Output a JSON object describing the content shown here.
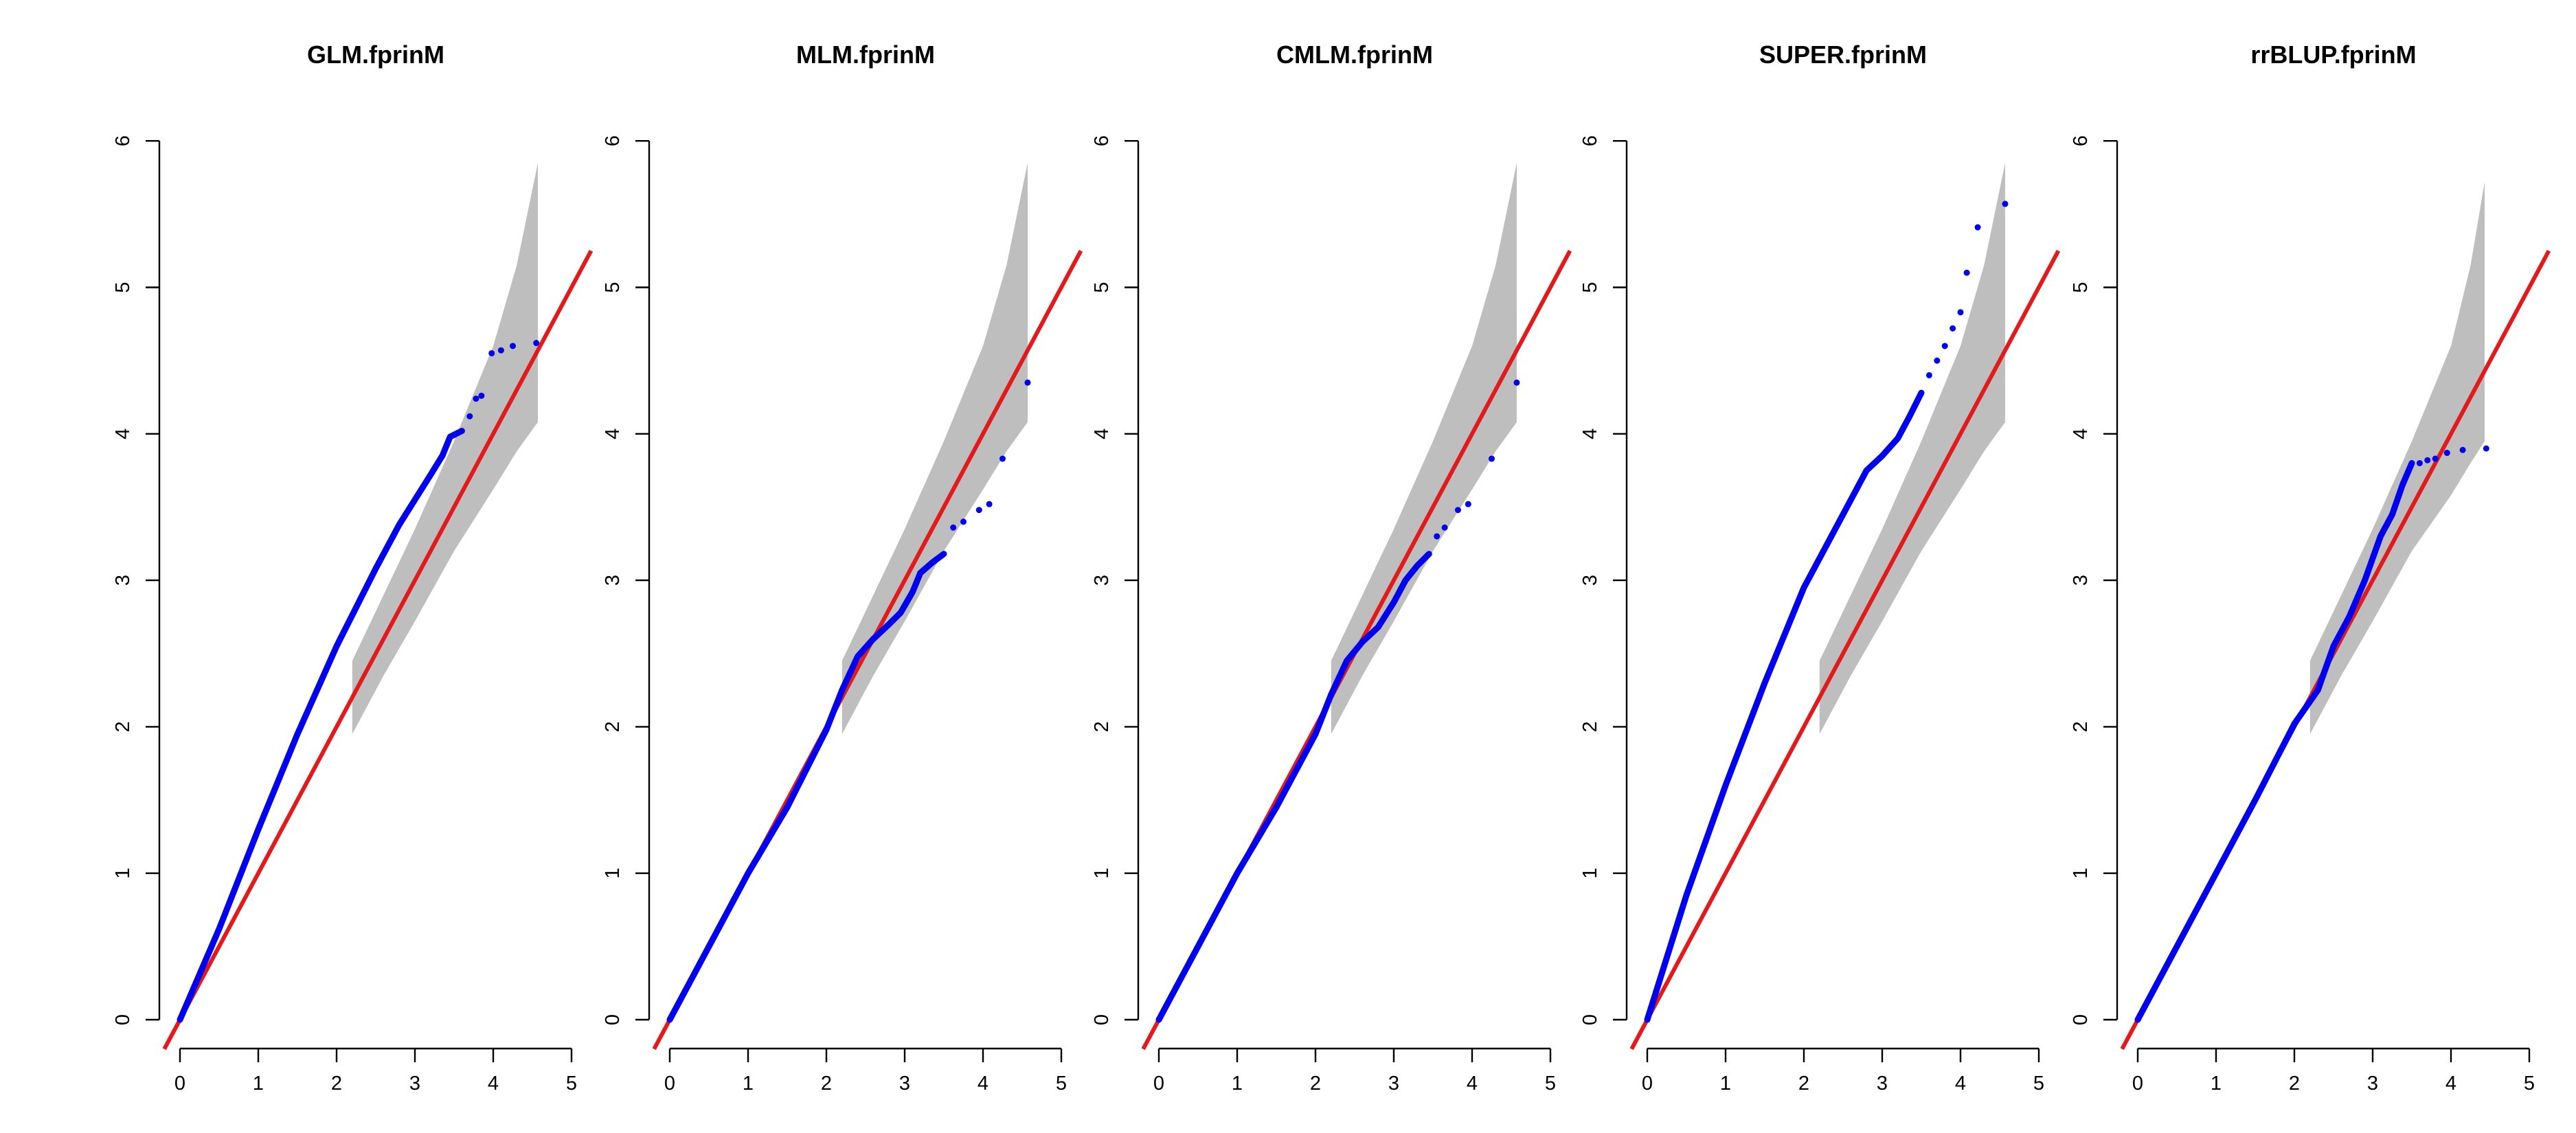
{
  "colors": {
    "points": "#0000ee",
    "diagonal": "#e31a1c",
    "confidence_band": "#bebebe",
    "axes": "#000000"
  },
  "chart_data": [
    {
      "type": "scatter",
      "title": "GLM.fprinM",
      "xlabel": "",
      "ylabel": "",
      "xlim": [
        0,
        5
      ],
      "ylim": [
        0,
        6
      ],
      "x_ticks": [
        0,
        1,
        2,
        3,
        4,
        5
      ],
      "y_ticks": [
        0,
        1,
        2,
        3,
        4,
        5,
        6
      ],
      "grid": false,
      "reference_line": {
        "slope": 1,
        "intercept": 0
      },
      "confidence_band": {
        "x": [
          2.2,
          2.6,
          3.0,
          3.5,
          4.0,
          4.3,
          4.57
        ],
        "lower": [
          1.95,
          2.35,
          2.72,
          3.2,
          3.62,
          3.88,
          4.08
        ],
        "upper": [
          2.45,
          2.9,
          3.35,
          3.95,
          4.6,
          5.15,
          5.85
        ]
      },
      "series": [
        {
          "curve": [
            [
              0,
              0
            ],
            [
              0.5,
              0.62
            ],
            [
              1.0,
              1.3
            ],
            [
              1.5,
              1.95
            ],
            [
              2.0,
              2.55
            ],
            [
              2.5,
              3.08
            ],
            [
              2.8,
              3.38
            ],
            [
              3.0,
              3.55
            ],
            [
              3.2,
              3.72
            ],
            [
              3.35,
              3.85
            ],
            [
              3.45,
              3.98
            ],
            [
              3.6,
              4.02
            ]
          ],
          "points": [
            [
              3.7,
              4.12
            ],
            [
              3.78,
              4.24
            ],
            [
              3.85,
              4.26
            ],
            [
              3.98,
              4.55
            ],
            [
              4.1,
              4.57
            ],
            [
              4.25,
              4.6
            ],
            [
              4.55,
              4.62
            ]
          ]
        }
      ]
    },
    {
      "type": "scatter",
      "title": "MLM.fprinM",
      "xlabel": "",
      "ylabel": "",
      "xlim": [
        0,
        5
      ],
      "ylim": [
        0,
        6
      ],
      "x_ticks": [
        0,
        1,
        2,
        3,
        4,
        5
      ],
      "y_ticks": [
        0,
        1,
        2,
        3,
        4,
        5,
        6
      ],
      "grid": false,
      "reference_line": {
        "slope": 1,
        "intercept": 0
      },
      "confidence_band": {
        "x": [
          2.2,
          2.6,
          3.0,
          3.5,
          4.0,
          4.3,
          4.57
        ],
        "lower": [
          1.95,
          2.35,
          2.72,
          3.2,
          3.62,
          3.88,
          4.08
        ],
        "upper": [
          2.45,
          2.9,
          3.35,
          3.95,
          4.6,
          5.15,
          5.85
        ]
      },
      "series": [
        {
          "curve": [
            [
              0,
              0
            ],
            [
              1.0,
              1.0
            ],
            [
              1.5,
              1.45
            ],
            [
              2.0,
              1.98
            ],
            [
              2.2,
              2.25
            ],
            [
              2.4,
              2.48
            ],
            [
              2.6,
              2.6
            ],
            [
              2.8,
              2.7
            ],
            [
              2.95,
              2.78
            ],
            [
              3.1,
              2.92
            ],
            [
              3.2,
              3.05
            ],
            [
              3.35,
              3.12
            ],
            [
              3.5,
              3.18
            ]
          ],
          "points": [
            [
              3.62,
              3.36
            ],
            [
              3.75,
              3.4
            ],
            [
              3.95,
              3.48
            ],
            [
              4.08,
              3.52
            ],
            [
              4.25,
              3.83
            ],
            [
              4.57,
              4.35
            ]
          ]
        }
      ]
    },
    {
      "type": "scatter",
      "title": "CMLM.fprinM",
      "xlabel": "",
      "ylabel": "",
      "xlim": [
        0,
        5
      ],
      "ylim": [
        0,
        6
      ],
      "x_ticks": [
        0,
        1,
        2,
        3,
        4,
        5
      ],
      "y_ticks": [
        0,
        1,
        2,
        3,
        4,
        5,
        6
      ],
      "grid": false,
      "reference_line": {
        "slope": 1,
        "intercept": 0
      },
      "confidence_band": {
        "x": [
          2.2,
          2.6,
          3.0,
          3.5,
          4.0,
          4.3,
          4.57
        ],
        "lower": [
          1.95,
          2.35,
          2.72,
          3.2,
          3.62,
          3.88,
          4.08
        ],
        "upper": [
          2.45,
          2.9,
          3.35,
          3.95,
          4.6,
          5.15,
          5.85
        ]
      },
      "series": [
        {
          "curve": [
            [
              0,
              0
            ],
            [
              1.0,
              1.0
            ],
            [
              1.5,
              1.45
            ],
            [
              2.0,
              1.95
            ],
            [
              2.2,
              2.22
            ],
            [
              2.4,
              2.45
            ],
            [
              2.6,
              2.58
            ],
            [
              2.8,
              2.68
            ],
            [
              3.0,
              2.85
            ],
            [
              3.15,
              3.0
            ],
            [
              3.3,
              3.1
            ],
            [
              3.45,
              3.18
            ]
          ],
          "points": [
            [
              3.55,
              3.3
            ],
            [
              3.65,
              3.36
            ],
            [
              3.82,
              3.48
            ],
            [
              3.95,
              3.52
            ],
            [
              4.25,
              3.83
            ],
            [
              4.57,
              4.35
            ]
          ]
        }
      ]
    },
    {
      "type": "scatter",
      "title": "SUPER.fprinM",
      "xlabel": "",
      "ylabel": "",
      "xlim": [
        0,
        5
      ],
      "ylim": [
        0,
        6
      ],
      "x_ticks": [
        0,
        1,
        2,
        3,
        4,
        5
      ],
      "y_ticks": [
        0,
        1,
        2,
        3,
        4,
        5,
        6
      ],
      "grid": false,
      "reference_line": {
        "slope": 1,
        "intercept": 0
      },
      "confidence_band": {
        "x": [
          2.2,
          2.6,
          3.0,
          3.5,
          4.0,
          4.3,
          4.57
        ],
        "lower": [
          1.95,
          2.35,
          2.72,
          3.2,
          3.62,
          3.88,
          4.08
        ],
        "upper": [
          2.45,
          2.9,
          3.35,
          3.95,
          4.6,
          5.15,
          5.85
        ]
      },
      "series": [
        {
          "curve": [
            [
              0,
              0
            ],
            [
              0.5,
              0.85
            ],
            [
              1.0,
              1.6
            ],
            [
              1.5,
              2.3
            ],
            [
              2.0,
              2.95
            ],
            [
              2.5,
              3.45
            ],
            [
              2.8,
              3.75
            ],
            [
              3.0,
              3.85
            ],
            [
              3.2,
              3.97
            ],
            [
              3.35,
              4.12
            ],
            [
              3.5,
              4.28
            ]
          ],
          "points": [
            [
              3.6,
              4.4
            ],
            [
              3.7,
              4.5
            ],
            [
              3.8,
              4.6
            ],
            [
              3.9,
              4.72
            ],
            [
              4.0,
              4.83
            ],
            [
              4.08,
              5.1
            ],
            [
              4.22,
              5.41
            ],
            [
              4.57,
              5.57
            ]
          ]
        }
      ]
    },
    {
      "type": "scatter",
      "title": "rrBLUP.fprinM",
      "xlabel": "",
      "ylabel": "",
      "xlim": [
        0,
        5
      ],
      "ylim": [
        0,
        6
      ],
      "x_ticks": [
        0,
        1,
        2,
        3,
        4,
        5
      ],
      "y_ticks": [
        0,
        1,
        2,
        3,
        4,
        5,
        6
      ],
      "grid": false,
      "reference_line": {
        "slope": 1,
        "intercept": 0
      },
      "confidence_band": {
        "x": [
          2.2,
          2.6,
          3.0,
          3.5,
          4.0,
          4.25,
          4.43
        ],
        "lower": [
          1.95,
          2.35,
          2.72,
          3.2,
          3.58,
          3.8,
          3.95
        ],
        "upper": [
          2.45,
          2.9,
          3.35,
          3.95,
          4.6,
          5.15,
          5.72
        ]
      },
      "series": [
        {
          "curve": [
            [
              0,
              0
            ],
            [
              1.0,
              1.0
            ],
            [
              1.5,
              1.5
            ],
            [
              2.0,
              2.02
            ],
            [
              2.3,
              2.25
            ],
            [
              2.5,
              2.55
            ],
            [
              2.7,
              2.75
            ],
            [
              2.9,
              3.0
            ],
            [
              3.1,
              3.3
            ],
            [
              3.25,
              3.45
            ],
            [
              3.38,
              3.65
            ],
            [
              3.5,
              3.8
            ]
          ],
          "points": [
            [
              3.6,
              3.8
            ],
            [
              3.7,
              3.82
            ],
            [
              3.8,
              3.83
            ],
            [
              3.95,
              3.87
            ],
            [
              4.15,
              3.89
            ],
            [
              4.45,
              3.9
            ]
          ]
        }
      ]
    }
  ]
}
